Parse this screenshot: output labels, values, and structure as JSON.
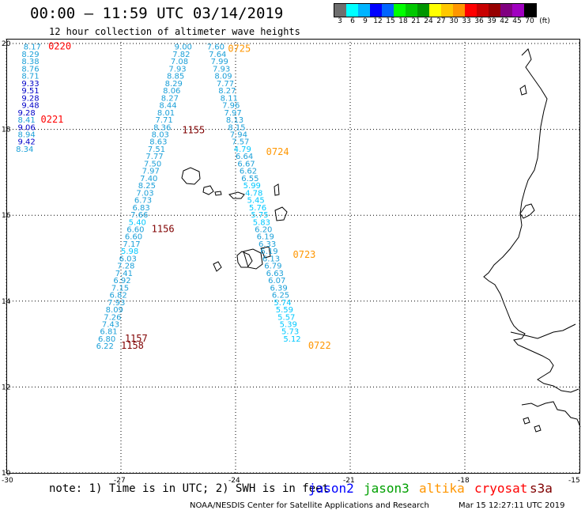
{
  "header": {
    "title": "00:00 – 11:59 UTC 03/14/2019",
    "subtitle": "12 hour collection of altimeter wave heights"
  },
  "colorbar": {
    "colors": [
      "#6e6e6e",
      "#00ffff",
      "#00b4ff",
      "#0000ff",
      "#0064ff",
      "#00ff00",
      "#00c800",
      "#009600",
      "#ffff00",
      "#ffc800",
      "#ff9600",
      "#ff0000",
      "#c80000",
      "#960000",
      "#800080",
      "#a000c0",
      "#000000"
    ],
    "labels": [
      "3",
      "6",
      "9",
      "12",
      "15",
      "18",
      "21",
      "24",
      "27",
      "30",
      "33",
      "36",
      "39",
      "42",
      "45",
      "70",
      "(ft)"
    ]
  },
  "axes": {
    "lat_labels": [
      "20",
      "18",
      "16",
      "14",
      "12",
      "10"
    ],
    "lon_labels": [
      "-30",
      "-27",
      "-24",
      "-21",
      "-18",
      "-15"
    ]
  },
  "tracks": [
    {
      "label": "0220",
      "color": "#ff0000",
      "points": [
        {
          "lat": 19.95,
          "lon": -29.55,
          "v": "8.17",
          "c": "#1ca0d8"
        },
        {
          "lat": 19.78,
          "lon": -29.6,
          "v": "8.29",
          "c": "#1ca0d8"
        },
        {
          "lat": 19.61,
          "lon": -29.6,
          "v": "8.38",
          "c": "#1ca0d8"
        },
        {
          "lat": 19.44,
          "lon": -29.6,
          "v": "8.76",
          "c": "#1ca0d8"
        },
        {
          "lat": 19.27,
          "lon": -29.6,
          "v": "8.71",
          "c": "#1ca0d8"
        },
        {
          "lat": 19.1,
          "lon": -29.6,
          "v": "9.33",
          "c": "#0000c8"
        },
        {
          "lat": 18.93,
          "lon": -29.6,
          "v": "9.51",
          "c": "#0000c8"
        },
        {
          "lat": 18.76,
          "lon": -29.6,
          "v": "9.28",
          "c": "#0000c8"
        },
        {
          "lat": 18.59,
          "lon": -29.6,
          "v": "9.48",
          "c": "#0000c8"
        },
        {
          "lat": 18.42,
          "lon": -29.7,
          "v": "9.28",
          "c": "#0000c8"
        }
      ]
    },
    {
      "label": "0221",
      "color": "#ff0000",
      "points": [
        {
          "lat": 18.25,
          "lon": -29.7,
          "v": "8.41",
          "c": "#1ca0d8"
        },
        {
          "lat": 18.08,
          "lon": -29.7,
          "v": "9.06",
          "c": "#0000c8"
        },
        {
          "lat": 17.91,
          "lon": -29.7,
          "v": "8.94",
          "c": "#1ca0d8"
        },
        {
          "lat": 17.74,
          "lon": -29.7,
          "v": "9.42",
          "c": "#0000c8"
        },
        {
          "lat": 17.57,
          "lon": -29.75,
          "v": "8.34",
          "c": "#1ca0d8"
        }
      ]
    },
    {
      "label": "1155",
      "color": "#800000",
      "points": [
        {
          "lat": 19.95,
          "lon": -25.6,
          "v": "9.00",
          "c": "#1ca0d8"
        },
        {
          "lat": 19.78,
          "lon": -25.65,
          "v": "7.82",
          "c": "#1ca0d8"
        },
        {
          "lat": 19.61,
          "lon": -25.7,
          "v": "7.08",
          "c": "#1ca0d8"
        },
        {
          "lat": 19.44,
          "lon": -25.75,
          "v": "7.93",
          "c": "#1ca0d8"
        },
        {
          "lat": 19.27,
          "lon": -25.8,
          "v": "8.85",
          "c": "#1ca0d8"
        },
        {
          "lat": 19.1,
          "lon": -25.85,
          "v": "8.29",
          "c": "#1ca0d8"
        },
        {
          "lat": 18.93,
          "lon": -25.9,
          "v": "8.06",
          "c": "#1ca0d8"
        },
        {
          "lat": 18.76,
          "lon": -25.95,
          "v": "8.27",
          "c": "#1ca0d8"
        },
        {
          "lat": 18.59,
          "lon": -26.0,
          "v": "8.44",
          "c": "#1ca0d8"
        },
        {
          "lat": 18.42,
          "lon": -26.05,
          "v": "8.01",
          "c": "#1ca0d8"
        },
        {
          "lat": 18.25,
          "lon": -26.1,
          "v": "7.71",
          "c": "#1ca0d8"
        },
        {
          "lat": 18.08,
          "lon": -26.15,
          "v": "8.36",
          "c": "#1ca0d8"
        },
        {
          "lat": 17.91,
          "lon": -26.2,
          "v": "8.03",
          "c": "#1ca0d8"
        },
        {
          "lat": 17.74,
          "lon": -26.25,
          "v": "8.63",
          "c": "#1ca0d8"
        },
        {
          "lat": 17.57,
          "lon": -26.3,
          "v": "7.51",
          "c": "#1ca0d8"
        },
        {
          "lat": 17.4,
          "lon": -26.35,
          "v": "7.77",
          "c": "#1ca0d8"
        },
        {
          "lat": 17.23,
          "lon": -26.4,
          "v": "7.50",
          "c": "#1ca0d8"
        },
        {
          "lat": 17.06,
          "lon": -26.45,
          "v": "7.97",
          "c": "#1ca0d8"
        },
        {
          "lat": 16.89,
          "lon": -26.5,
          "v": "7.40",
          "c": "#1ca0d8"
        },
        {
          "lat": 16.72,
          "lon": -26.55,
          "v": "8.25",
          "c": "#1ca0d8"
        },
        {
          "lat": 16.55,
          "lon": -26.6,
          "v": "7.03",
          "c": "#1ca0d8"
        },
        {
          "lat": 16.38,
          "lon": -26.65,
          "v": "6.73",
          "c": "#1ca0d8"
        },
        {
          "lat": 16.21,
          "lon": -26.7,
          "v": "6.83",
          "c": "#1ca0d8"
        },
        {
          "lat": 16.04,
          "lon": -26.75,
          "v": "7.66",
          "c": "#1ca0d8"
        },
        {
          "lat": 15.87,
          "lon": -26.8,
          "v": "5.40",
          "c": "#00c8ff"
        },
        {
          "lat": 15.7,
          "lon": -26.85,
          "v": "6.60",
          "c": "#1ca0d8"
        }
      ]
    },
    {
      "label": "1156",
      "color": "#800000",
      "points": [
        {
          "lat": 15.53,
          "lon": -26.9,
          "v": "6.60",
          "c": "#1ca0d8"
        },
        {
          "lat": 15.36,
          "lon": -26.95,
          "v": "7.17",
          "c": "#1ca0d8"
        },
        {
          "lat": 15.19,
          "lon": -27.0,
          "v": "5.98",
          "c": "#00c8ff"
        },
        {
          "lat": 15.02,
          "lon": -27.05,
          "v": "6.03",
          "c": "#1ca0d8"
        },
        {
          "lat": 14.85,
          "lon": -27.1,
          "v": "7.28",
          "c": "#1ca0d8"
        },
        {
          "lat": 14.68,
          "lon": -27.15,
          "v": "7.41",
          "c": "#1ca0d8"
        },
        {
          "lat": 14.51,
          "lon": -27.2,
          "v": "6.92",
          "c": "#1ca0d8"
        },
        {
          "lat": 14.34,
          "lon": -27.25,
          "v": "7.15",
          "c": "#1ca0d8"
        },
        {
          "lat": 14.17,
          "lon": -27.3,
          "v": "6.82",
          "c": "#1ca0d8"
        },
        {
          "lat": 14.0,
          "lon": -27.35,
          "v": "7.93",
          "c": "#1ca0d8"
        },
        {
          "lat": 13.83,
          "lon": -27.4,
          "v": "8.09",
          "c": "#1ca0d8"
        },
        {
          "lat": 13.66,
          "lon": -27.45,
          "v": "7.26",
          "c": "#1ca0d8"
        },
        {
          "lat": 13.49,
          "lon": -27.5,
          "v": "7.43",
          "c": "#1ca0d8"
        },
        {
          "lat": 13.32,
          "lon": -27.55,
          "v": "6.81",
          "c": "#1ca0d8"
        },
        {
          "lat": 13.15,
          "lon": -27.6,
          "v": "6.80",
          "c": "#1ca0d8"
        },
        {
          "lat": 12.98,
          "lon": -27.65,
          "v": "6.22",
          "c": "#1ca0d8"
        }
      ]
    },
    {
      "label": "0725",
      "color": "#ff9600",
      "points": [
        {
          "lat": 19.95,
          "lon": -24.75,
          "v": "7.60",
          "c": "#1ca0d8"
        },
        {
          "lat": 19.78,
          "lon": -24.7,
          "v": "7.64",
          "c": "#1ca0d8"
        },
        {
          "lat": 19.61,
          "lon": -24.65,
          "v": "7.99",
          "c": "#1ca0d8"
        },
        {
          "lat": 19.44,
          "lon": -24.6,
          "v": "7.93",
          "c": "#1ca0d8"
        },
        {
          "lat": 19.27,
          "lon": -24.55,
          "v": "8.09",
          "c": "#1ca0d8"
        },
        {
          "lat": 19.1,
          "lon": -24.5,
          "v": "7.77",
          "c": "#1ca0d8"
        },
        {
          "lat": 18.93,
          "lon": -24.45,
          "v": "8.27",
          "c": "#1ca0d8"
        },
        {
          "lat": 18.76,
          "lon": -24.4,
          "v": "8.11",
          "c": "#1ca0d8"
        },
        {
          "lat": 18.59,
          "lon": -24.35,
          "v": "7.96",
          "c": "#1ca0d8"
        },
        {
          "lat": 18.42,
          "lon": -24.3,
          "v": "7.97",
          "c": "#1ca0d8"
        },
        {
          "lat": 18.25,
          "lon": -24.25,
          "v": "8.13",
          "c": "#1ca0d8"
        },
        {
          "lat": 18.08,
          "lon": -24.2,
          "v": "8.15",
          "c": "#1ca0d8"
        },
        {
          "lat": 17.91,
          "lon": -24.15,
          "v": "7.94",
          "c": "#1ca0d8"
        },
        {
          "lat": 17.74,
          "lon": -24.1,
          "v": "7.57",
          "c": "#1ca0d8"
        }
      ]
    },
    {
      "label": "0724",
      "color": "#ff9600",
      "points": [
        {
          "lat": 17.57,
          "lon": -24.05,
          "v": "4.79",
          "c": "#00c8ff"
        },
        {
          "lat": 17.4,
          "lon": -24.0,
          "v": "6.64",
          "c": "#1ca0d8"
        },
        {
          "lat": 17.23,
          "lon": -23.95,
          "v": "6.67",
          "c": "#1ca0d8"
        },
        {
          "lat": 17.06,
          "lon": -23.9,
          "v": "6.62",
          "c": "#1ca0d8"
        },
        {
          "lat": 16.89,
          "lon": -23.85,
          "v": "6.55",
          "c": "#1ca0d8"
        },
        {
          "lat": 16.72,
          "lon": -23.8,
          "v": "5.99",
          "c": "#00c8ff"
        },
        {
          "lat": 16.55,
          "lon": -23.75,
          "v": "4.78",
          "c": "#00c8ff"
        },
        {
          "lat": 16.38,
          "lon": -23.7,
          "v": "5.45",
          "c": "#00c8ff"
        },
        {
          "lat": 16.21,
          "lon": -23.65,
          "v": "5.76",
          "c": "#00c8ff"
        },
        {
          "lat": 16.04,
          "lon": -23.6,
          "v": "5.75",
          "c": "#00c8ff"
        },
        {
          "lat": 15.87,
          "lon": -23.55,
          "v": "5.83",
          "c": "#00c8ff"
        },
        {
          "lat": 15.7,
          "lon": -23.5,
          "v": "6.20",
          "c": "#1ca0d8"
        },
        {
          "lat": 15.53,
          "lon": -23.45,
          "v": "6.19",
          "c": "#1ca0d8"
        },
        {
          "lat": 15.36,
          "lon": -23.4,
          "v": "6.33",
          "c": "#1ca0d8"
        },
        {
          "lat": 15.19,
          "lon": -23.35,
          "v": "6.19",
          "c": "#1ca0d8"
        }
      ]
    },
    {
      "label": "0723",
      "color": "#ff9600",
      "points": [
        {
          "lat": 15.02,
          "lon": -23.3,
          "v": "6.13",
          "c": "#1ca0d8"
        },
        {
          "lat": 14.85,
          "lon": -23.25,
          "v": "6.79",
          "c": "#1ca0d8"
        },
        {
          "lat": 14.68,
          "lon": -23.2,
          "v": "6.63",
          "c": "#1ca0d8"
        },
        {
          "lat": 14.51,
          "lon": -23.15,
          "v": "6.07",
          "c": "#1ca0d8"
        },
        {
          "lat": 14.34,
          "lon": -23.1,
          "v": "6.39",
          "c": "#1ca0d8"
        },
        {
          "lat": 14.17,
          "lon": -23.05,
          "v": "6.25",
          "c": "#1ca0d8"
        },
        {
          "lat": 14.0,
          "lon": -23.0,
          "v": "5.74",
          "c": "#00c8ff"
        },
        {
          "lat": 13.83,
          "lon": -22.95,
          "v": "5.59",
          "c": "#00c8ff"
        },
        {
          "lat": 13.66,
          "lon": -22.9,
          "v": "5.57",
          "c": "#00c8ff"
        },
        {
          "lat": 13.49,
          "lon": -22.85,
          "v": "5.39",
          "c": "#00c8ff"
        },
        {
          "lat": 13.32,
          "lon": -22.8,
          "v": "5.73",
          "c": "#00c8ff"
        },
        {
          "lat": 13.15,
          "lon": -22.75,
          "v": "5.12",
          "c": "#00c8ff"
        }
      ]
    }
  ],
  "pass_labels": [
    {
      "text": "0220",
      "color": "#ff0000",
      "lat": 19.95,
      "lon": -28.9
    },
    {
      "text": "0221",
      "color": "#ff0000",
      "lat": 18.25,
      "lon": -29.1
    },
    {
      "text": "0725",
      "color": "#ff9600",
      "lat": 19.9,
      "lon": -24.2
    },
    {
      "text": "1155",
      "color": "#800000",
      "lat": 18.0,
      "lon": -25.4
    },
    {
      "text": "0724",
      "color": "#ff9600",
      "lat": 17.5,
      "lon": -23.2
    },
    {
      "text": "1156",
      "color": "#800000",
      "lat": 15.7,
      "lon": -26.2
    },
    {
      "text": "0723",
      "color": "#ff9600",
      "lat": 15.1,
      "lon": -22.5
    },
    {
      "text": "1157",
      "color": "#800000",
      "lat": 13.15,
      "lon": -26.9
    },
    {
      "text": "1158",
      "color": "#800000",
      "lat": 12.98,
      "lon": -27.0
    },
    {
      "text": "0722",
      "color": "#ff9600",
      "lat": 12.98,
      "lon": -22.1
    }
  ],
  "note": "note: 1) Time is in UTC; 2) SWH is in feet",
  "satellites": [
    {
      "name": "jason2",
      "color": "#0000ff"
    },
    {
      "name": "jason3",
      "color": "#00a000"
    },
    {
      "name": "altika",
      "color": "#ff9600"
    },
    {
      "name": "cryosat",
      "color": "#ff0000"
    },
    {
      "name": "s3a",
      "color": "#800000"
    }
  ],
  "footer": {
    "credit": "NOAA/NESDIS Center for Satellite Applications and Research",
    "timestamp": "Mar 15 12:27:11 UTC 2019"
  }
}
